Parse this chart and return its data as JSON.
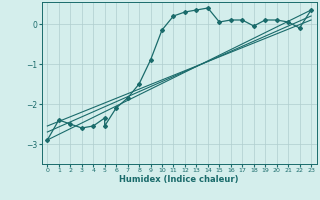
{
  "xlabel": "Humidex (Indice chaleur)",
  "background_color": "#d4eeec",
  "grid_color": "#b0cece",
  "line_color": "#1a6b6b",
  "xlim": [
    -0.5,
    23.5
  ],
  "ylim": [
    -3.5,
    0.55
  ],
  "xticks": [
    0,
    1,
    2,
    3,
    4,
    5,
    6,
    7,
    8,
    9,
    10,
    11,
    12,
    13,
    14,
    15,
    16,
    17,
    18,
    19,
    20,
    21,
    22,
    23
  ],
  "yticks": [
    0,
    -1,
    -2,
    -3
  ],
  "series1_x": [
    0,
    1,
    2,
    3,
    4,
    5,
    5,
    6,
    7,
    8,
    9,
    10,
    11,
    12,
    13,
    14,
    15,
    16,
    17,
    18,
    19,
    20,
    21,
    22,
    23
  ],
  "series1_y": [
    -2.9,
    -2.4,
    -2.5,
    -2.6,
    -2.55,
    -2.35,
    -2.55,
    -2.1,
    -1.85,
    -1.5,
    -0.9,
    -0.15,
    0.2,
    0.3,
    0.35,
    0.4,
    0.05,
    0.1,
    0.1,
    -0.05,
    0.1,
    0.1,
    0.05,
    -0.1,
    0.35
  ],
  "series2_x": [
    0,
    23
  ],
  "series2_y": [
    -2.9,
    0.35
  ],
  "series3_x": [
    0,
    23
  ],
  "series3_y": [
    -2.7,
    0.2
  ],
  "series4_x": [
    0,
    23
  ],
  "series4_y": [
    -2.55,
    0.1
  ]
}
